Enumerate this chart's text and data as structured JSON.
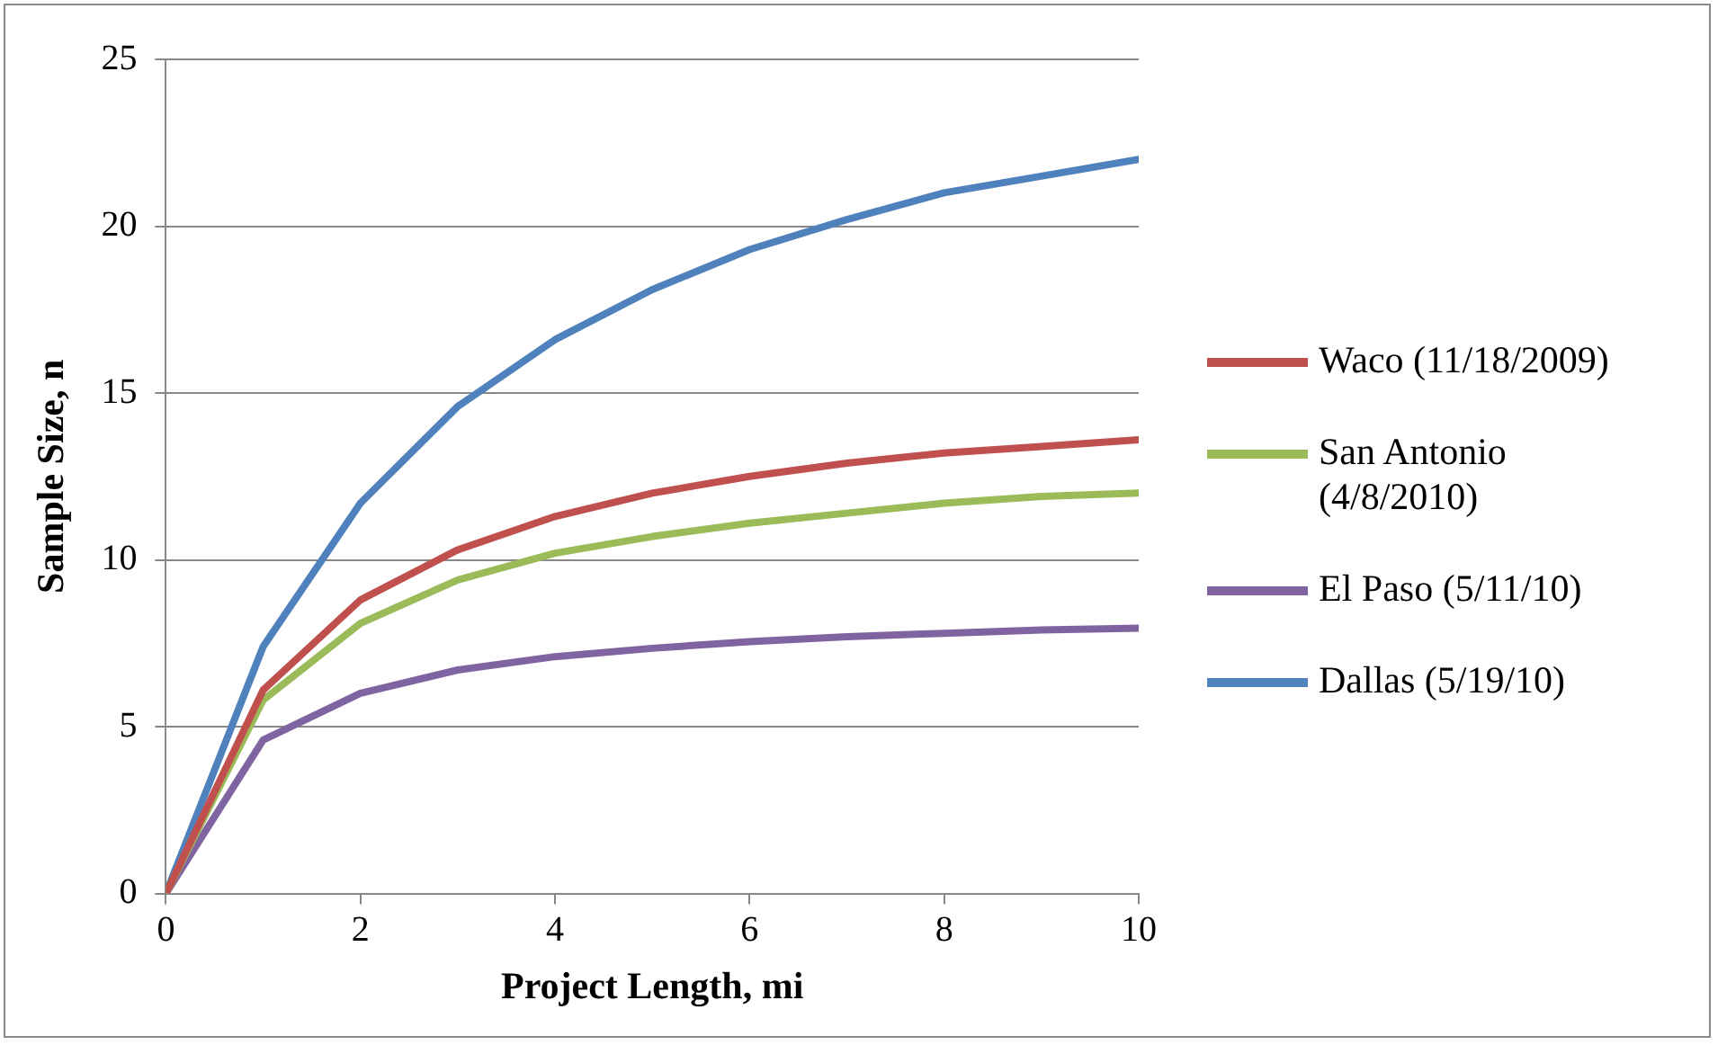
{
  "chart_data": {
    "type": "line",
    "xlabel": "Project Length, mi",
    "ylabel": "Sample Size, n",
    "x": [
      0,
      1,
      2,
      3,
      4,
      5,
      6,
      7,
      8,
      9,
      10
    ],
    "series": [
      {
        "name": "Waco (11/18/2009)",
        "color": "#c0504d",
        "values": [
          0,
          6.1,
          8.8,
          10.3,
          11.3,
          12.0,
          12.5,
          12.9,
          13.2,
          13.4,
          13.6
        ]
      },
      {
        "name": "San Antonio (4/8/2010)",
        "color": "#9bbb59",
        "values": [
          0,
          5.8,
          8.1,
          9.4,
          10.2,
          10.7,
          11.1,
          11.4,
          11.7,
          11.9,
          12.0
        ]
      },
      {
        "name": "El Paso (5/11/10)",
        "color": "#8064a2",
        "values": [
          0,
          4.6,
          6.0,
          6.7,
          7.1,
          7.35,
          7.55,
          7.7,
          7.8,
          7.9,
          7.95
        ]
      },
      {
        "name": "Dallas (5/19/10)",
        "color": "#4f81bd",
        "values": [
          0,
          7.4,
          11.7,
          14.6,
          16.6,
          18.1,
          19.3,
          20.2,
          21.0,
          21.5,
          22.0
        ]
      }
    ],
    "xlim": [
      0,
      10
    ],
    "xticks": [
      0,
      2,
      4,
      6,
      8,
      10
    ],
    "ylim": [
      0,
      25
    ],
    "yticks": [
      0,
      5,
      10,
      15,
      20,
      25
    ],
    "grid": "y",
    "legend": "right",
    "marker": "none",
    "line_style": "solid"
  }
}
